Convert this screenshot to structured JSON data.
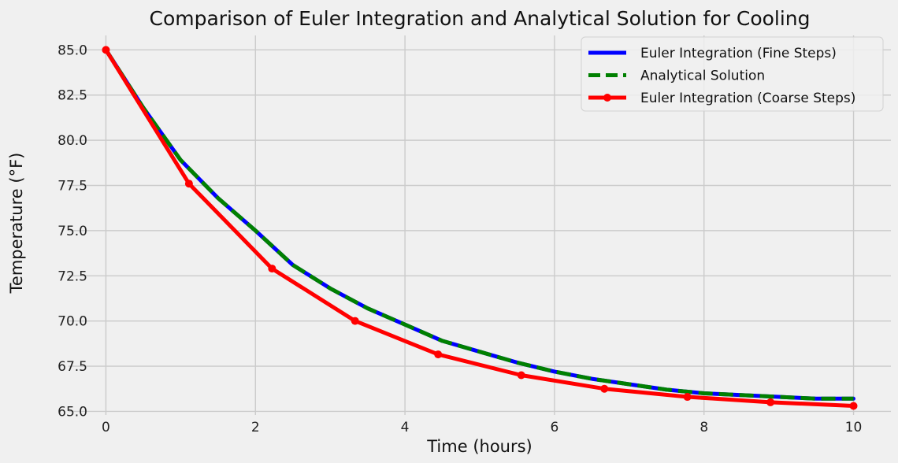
{
  "chart_data": {
    "type": "line",
    "title": "Comparison of Euler Integration and Analytical Solution for Cooling",
    "xlabel": "Time (hours)",
    "ylabel": "Temperature (°F)",
    "xlim": [
      -0.5,
      10.5
    ],
    "ylim": [
      64.8,
      85.8
    ],
    "xticks": [
      0,
      2,
      4,
      6,
      8,
      10
    ],
    "xtick_labels": [
      "0",
      "2",
      "4",
      "6",
      "8",
      "10"
    ],
    "yticks": [
      65.0,
      67.5,
      70.0,
      72.5,
      75.0,
      77.5,
      80.0,
      82.5,
      85.0
    ],
    "ytick_labels": [
      "65.0",
      "67.5",
      "70.0",
      "72.5",
      "75.0",
      "77.5",
      "80.0",
      "82.5",
      "85.0"
    ],
    "grid": true,
    "legend_position": "top-right",
    "background": "#f0f0f0",
    "series": [
      {
        "name": "Euler Integration (Fine Steps)",
        "color": "#0000ff",
        "style": "solid",
        "markers": false,
        "x": [
          0,
          0.5,
          1,
          1.5,
          2,
          2.5,
          3,
          3.5,
          4,
          4.5,
          5,
          5.5,
          6,
          6.5,
          7,
          7.5,
          8,
          8.5,
          9,
          9.5,
          10
        ],
        "y": [
          85.0,
          81.8,
          78.9,
          76.8,
          75.0,
          73.1,
          71.8,
          70.7,
          69.8,
          68.9,
          68.3,
          67.7,
          67.2,
          66.8,
          66.5,
          66.2,
          66.0,
          65.9,
          65.8,
          65.7,
          65.7
        ]
      },
      {
        "name": "Analytical Solution",
        "color": "#008000",
        "style": "dashed",
        "markers": false,
        "x": [
          0,
          0.5,
          1,
          1.5,
          2,
          2.5,
          3,
          3.5,
          4,
          4.5,
          5,
          5.5,
          6,
          6.5,
          7,
          7.5,
          8,
          8.5,
          9,
          9.5,
          10
        ],
        "y": [
          85.0,
          81.8,
          78.9,
          76.8,
          75.0,
          73.1,
          71.8,
          70.7,
          69.8,
          68.9,
          68.3,
          67.7,
          67.2,
          66.8,
          66.5,
          66.2,
          66.0,
          65.9,
          65.8,
          65.7,
          65.7
        ]
      },
      {
        "name": "Euler Integration (Coarse Steps)",
        "color": "#ff0000",
        "style": "solid",
        "markers": true,
        "x": [
          0,
          1.111,
          2.222,
          3.333,
          4.444,
          5.556,
          6.667,
          7.778,
          8.889,
          10
        ],
        "y": [
          85.0,
          77.6,
          72.9,
          70.0,
          68.15,
          67.0,
          66.25,
          65.8,
          65.5,
          65.3
        ]
      }
    ]
  }
}
